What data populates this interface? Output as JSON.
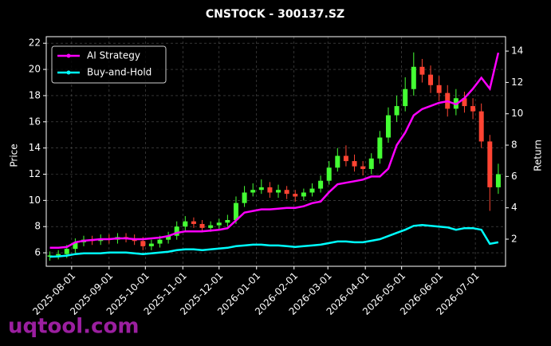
{
  "chart_data": {
    "type": "candlestick",
    "title": "CNSTOCK - 300137.SZ",
    "ylabel": "Price",
    "y2label": "Return",
    "watermark": "uqtool.com",
    "x": [
      "2025-07-14",
      "2025-07-21",
      "2025-07-28",
      "2025-08-04",
      "2025-08-11",
      "2025-08-18",
      "2025-08-25",
      "2025-09-01",
      "2025-09-08",
      "2025-09-15",
      "2025-09-22",
      "2025-09-29",
      "2025-10-06",
      "2025-10-13",
      "2025-10-20",
      "2025-10-27",
      "2025-11-03",
      "2025-11-10",
      "2025-11-17",
      "2025-11-24",
      "2025-12-01",
      "2025-12-08",
      "2025-12-15",
      "2025-12-22",
      "2025-12-29",
      "2026-01-05",
      "2026-01-12",
      "2026-01-19",
      "2026-01-26",
      "2026-02-02",
      "2026-02-09",
      "2026-02-16",
      "2026-02-23",
      "2026-03-02",
      "2026-03-09",
      "2026-03-16",
      "2026-03-23",
      "2026-03-30",
      "2026-04-06",
      "2026-04-13",
      "2026-04-20",
      "2026-04-27",
      "2026-05-04",
      "2026-05-11",
      "2026-05-18",
      "2026-05-25",
      "2026-06-01",
      "2026-06-08",
      "2026-06-15",
      "2026-06-22",
      "2026-06-29",
      "2026-07-06",
      "2026-07-13",
      "2026-07-20"
    ],
    "open": [
      5.7,
      5.8,
      5.9,
      6.3,
      6.8,
      7.0,
      6.9,
      7.1,
      7.0,
      7.2,
      7.1,
      6.9,
      6.5,
      6.7,
      7.0,
      7.3,
      8.0,
      8.4,
      8.2,
      7.9,
      8.1,
      8.3,
      8.5,
      9.8,
      10.6,
      10.8,
      11.0,
      10.6,
      10.8,
      10.5,
      10.3,
      10.6,
      10.9,
      11.5,
      12.5,
      13.4,
      13.0,
      12.6,
      12.4,
      13.2,
      14.8,
      16.5,
      17.2,
      18.5,
      20.2,
      19.6,
      18.8,
      18.2,
      17.0,
      17.8,
      17.2,
      16.8,
      14.5,
      11.0
    ],
    "high": [
      6.1,
      6.2,
      6.6,
      7.1,
      7.3,
      7.3,
      7.4,
      7.4,
      7.5,
      7.5,
      7.4,
      7.2,
      7.0,
      7.3,
      7.6,
      8.4,
      8.8,
      8.7,
      8.5,
      8.4,
      8.6,
      8.9,
      10.3,
      11.1,
      11.3,
      11.6,
      11.4,
      11.2,
      11.1,
      10.8,
      10.9,
      11.3,
      11.9,
      13.0,
      14.0,
      14.2,
      13.5,
      13.0,
      13.6,
      15.3,
      17.1,
      18.0,
      19.4,
      21.3,
      20.8,
      20.3,
      19.5,
      18.8,
      18.5,
      18.3,
      17.8,
      17.4,
      15.0,
      12.8
    ],
    "low": [
      5.4,
      5.5,
      5.6,
      6.0,
      6.5,
      6.6,
      6.6,
      6.7,
      6.7,
      6.8,
      6.6,
      6.2,
      6.2,
      6.4,
      6.7,
      7.0,
      7.7,
      7.9,
      7.6,
      7.6,
      7.8,
      8.0,
      8.2,
      9.5,
      10.3,
      10.5,
      10.2,
      10.2,
      10.1,
      9.9,
      10.0,
      10.3,
      10.6,
      11.2,
      12.2,
      12.6,
      12.2,
      11.9,
      12.0,
      12.8,
      14.4,
      16.0,
      16.8,
      18.0,
      19.0,
      18.2,
      17.6,
      16.4,
      16.5,
      16.7,
      16.2,
      14.0,
      9.2,
      10.5
    ],
    "close": [
      5.8,
      5.9,
      6.3,
      6.8,
      7.0,
      6.9,
      7.1,
      7.0,
      7.2,
      7.1,
      6.9,
      6.5,
      6.7,
      7.0,
      7.3,
      8.0,
      8.4,
      8.2,
      7.9,
      8.1,
      8.3,
      8.5,
      9.8,
      10.6,
      10.8,
      11.0,
      10.6,
      10.8,
      10.5,
      10.3,
      10.6,
      10.9,
      11.5,
      12.5,
      13.4,
      13.0,
      12.6,
      12.4,
      13.2,
      14.8,
      16.5,
      17.2,
      18.5,
      20.2,
      19.6,
      18.8,
      18.2,
      17.0,
      17.8,
      17.2,
      16.8,
      14.5,
      11.0,
      12.0
    ],
    "up_color": "#44ff33",
    "down_color": "#ff4433",
    "series": [
      {
        "name": "AI Strategy",
        "color": "#ff00ff",
        "axis": "y2",
        "values": [
          1.45,
          1.45,
          1.5,
          1.8,
          1.9,
          1.95,
          2.0,
          2.0,
          2.05,
          2.05,
          2.0,
          2.0,
          2.05,
          2.1,
          2.2,
          2.4,
          2.5,
          2.5,
          2.5,
          2.55,
          2.6,
          2.7,
          3.2,
          3.7,
          3.8,
          3.9,
          3.9,
          3.95,
          4.0,
          4.0,
          4.1,
          4.3,
          4.4,
          5.0,
          5.5,
          5.6,
          5.7,
          5.8,
          6.0,
          6.0,
          6.5,
          8.0,
          8.8,
          9.9,
          10.3,
          10.5,
          10.7,
          10.8,
          10.6,
          11.0,
          11.6,
          12.3,
          11.6,
          13.9
        ]
      },
      {
        "name": "Buy-and-Hold",
        "color": "#00ffff",
        "axis": "y2",
        "values": [
          0.88,
          0.9,
          0.95,
          1.05,
          1.1,
          1.1,
          1.1,
          1.15,
          1.15,
          1.15,
          1.1,
          1.05,
          1.1,
          1.15,
          1.2,
          1.3,
          1.35,
          1.35,
          1.3,
          1.35,
          1.4,
          1.45,
          1.55,
          1.6,
          1.65,
          1.65,
          1.6,
          1.6,
          1.55,
          1.5,
          1.55,
          1.6,
          1.65,
          1.75,
          1.85,
          1.85,
          1.8,
          1.8,
          1.9,
          2.0,
          2.2,
          2.4,
          2.6,
          2.85,
          2.9,
          2.85,
          2.8,
          2.75,
          2.6,
          2.7,
          2.7,
          2.6,
          1.7,
          1.8
        ]
      }
    ],
    "xlim": [
      "2025-07-11",
      "2026-07-26"
    ],
    "xticks": [
      "2025-08-01",
      "2025-09-01",
      "2025-10-01",
      "2025-11-01",
      "2025-12-01",
      "2026-01-01",
      "2026-02-01",
      "2026-03-01",
      "2026-04-01",
      "2026-05-01",
      "2026-06-01",
      "2026-07-01"
    ],
    "ylim": [
      4.97,
      22.5
    ],
    "yticks": [
      6,
      8,
      10,
      12,
      14,
      16,
      18,
      20,
      22
    ],
    "y2lim": [
      0.27,
      14.92
    ],
    "y2ticks": [
      2,
      4,
      6,
      8,
      10,
      12,
      14
    ],
    "grid": true,
    "legend": "upper left"
  }
}
